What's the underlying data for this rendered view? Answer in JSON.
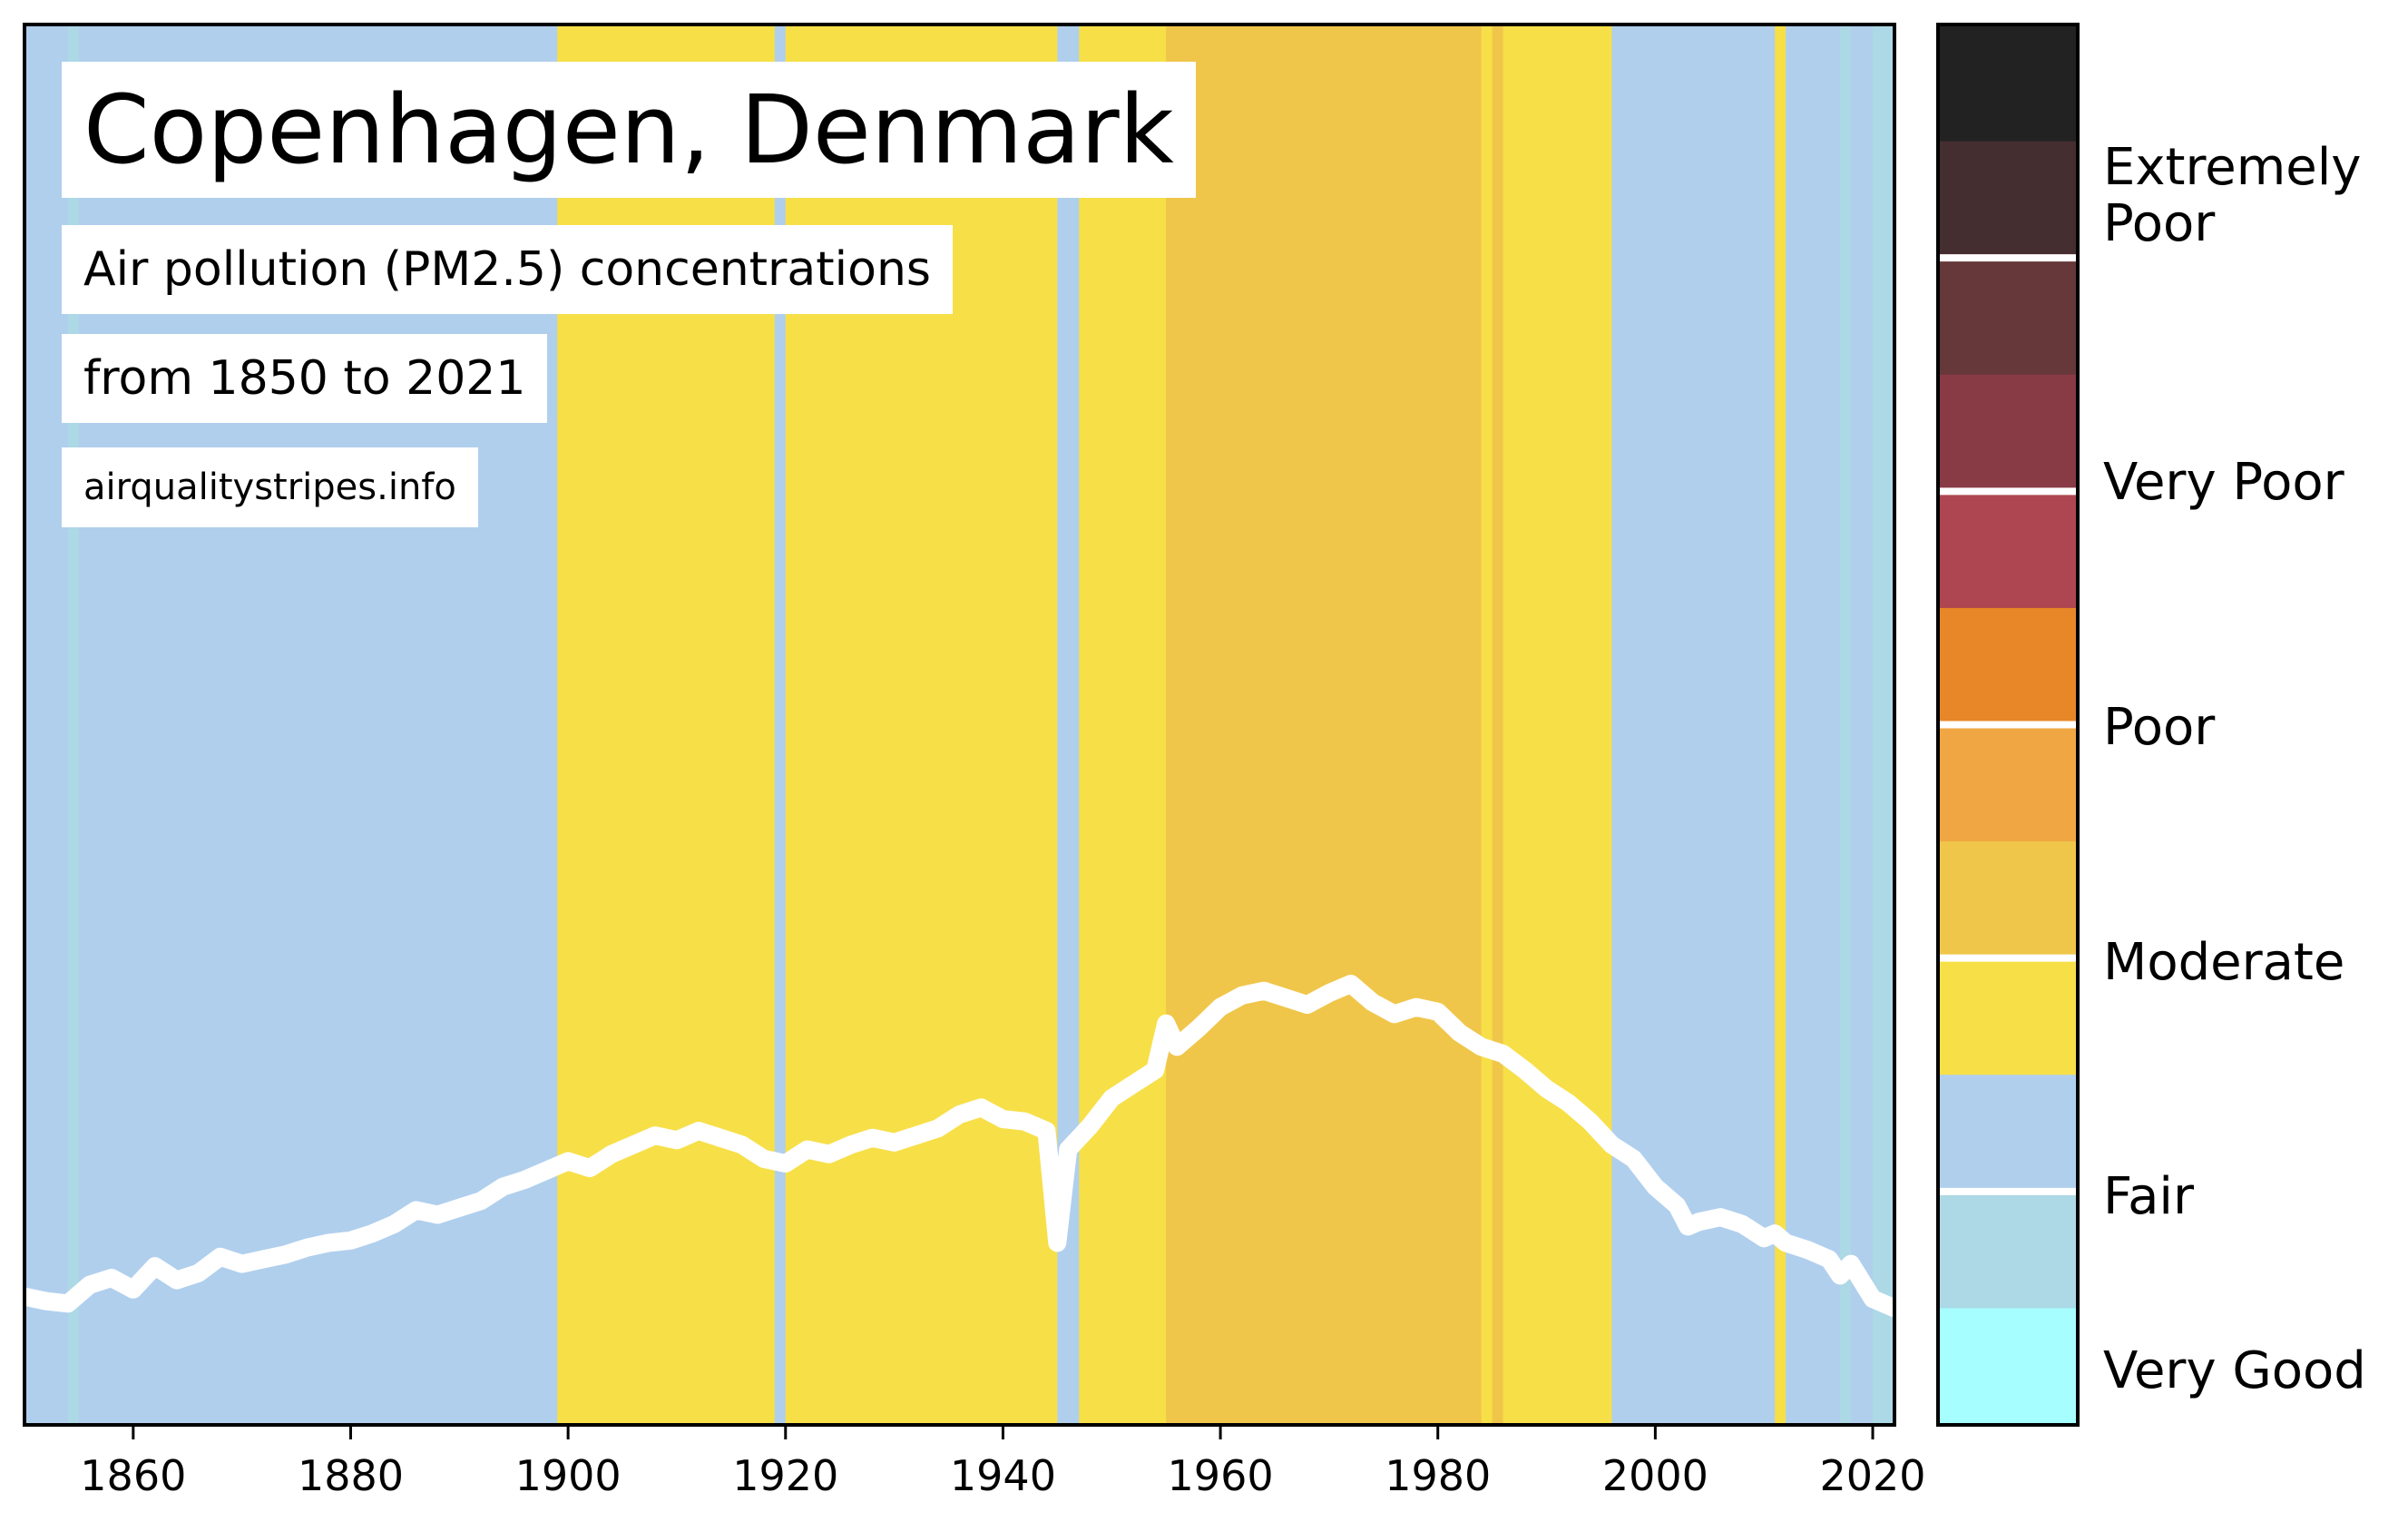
{
  "header": {
    "title": "Copenhagen, Denmark",
    "subtitle_line1": "Air pollution (PM2.5) concentrations",
    "subtitle_line2": "from 1850 to 2021",
    "source": "airqualitystripes.info"
  },
  "chart_data": {
    "type": "area",
    "description_kind": "air quality stripes with PM2.5 line",
    "xlim": [
      1850,
      2022
    ],
    "ylim": [
      0,
      60
    ],
    "x_ticks": [
      "1860",
      "1880",
      "1900",
      "1920",
      "1940",
      "1960",
      "1980",
      "2000",
      "2020"
    ],
    "category_colors": {
      "Fair_light": "#b0cfed",
      "Fair_teal": "#add8e6",
      "Moderate_yellow": "#f7df48",
      "Moderate_amber": "#f0c64a"
    },
    "stripes": [
      {
        "from": 1850,
        "to": 1854,
        "color": "#b0cfed"
      },
      {
        "from": 1854,
        "to": 1855,
        "color": "#add8e6"
      },
      {
        "from": 1855,
        "to": 1899,
        "color": "#b0cfed"
      },
      {
        "from": 1899,
        "to": 1919,
        "color": "#f7df48"
      },
      {
        "from": 1919,
        "to": 1920,
        "color": "#b0cfed"
      },
      {
        "from": 1920,
        "to": 1945,
        "color": "#f7df48"
      },
      {
        "from": 1945,
        "to": 1947,
        "color": "#b0cfed"
      },
      {
        "from": 1947,
        "to": 1955,
        "color": "#f7df48"
      },
      {
        "from": 1955,
        "to": 1984,
        "color": "#f0c64a"
      },
      {
        "from": 1984,
        "to": 1985,
        "color": "#f7df48"
      },
      {
        "from": 1985,
        "to": 1986,
        "color": "#f0c64a"
      },
      {
        "from": 1986,
        "to": 1987,
        "color": "#f7df48"
      },
      {
        "from": 1987,
        "to": 1996,
        "color": "#f7df48"
      },
      {
        "from": 1996,
        "to": 2011,
        "color": "#b0cfed"
      },
      {
        "from": 2011,
        "to": 2012,
        "color": "#f7df48"
      },
      {
        "from": 2012,
        "to": 2017,
        "color": "#b0cfed"
      },
      {
        "from": 2017,
        "to": 2018,
        "color": "#add8e6"
      },
      {
        "from": 2018,
        "to": 2020,
        "color": "#b0cfed"
      },
      {
        "from": 2020,
        "to": 2022,
        "color": "#add8e6"
      }
    ],
    "series": [
      {
        "color": "#ffffff",
        "x": [
          1850,
          1852,
          1854,
          1856,
          1858,
          1860,
          1862,
          1864,
          1866,
          1868,
          1870,
          1872,
          1874,
          1876,
          1878,
          1880,
          1882,
          1884,
          1886,
          1888,
          1890,
          1892,
          1894,
          1896,
          1898,
          1900,
          1902,
          1904,
          1906,
          1908,
          1910,
          1912,
          1914,
          1916,
          1918,
          1920,
          1922,
          1924,
          1926,
          1928,
          1930,
          1932,
          1934,
          1936,
          1938,
          1940,
          1942,
          1944,
          1945,
          1946,
          1948,
          1950,
          1952,
          1954,
          1955,
          1956,
          1958,
          1960,
          1962,
          1964,
          1966,
          1968,
          1970,
          1972,
          1974,
          1976,
          1978,
          1980,
          1982,
          1984,
          1986,
          1988,
          1990,
          1992,
          1994,
          1996,
          1998,
          2000,
          2002,
          2003,
          2004,
          2006,
          2008,
          2010,
          2011,
          2012,
          2014,
          2016,
          2017,
          2018,
          2020,
          2022
        ],
        "values": [
          5.5,
          5.3,
          5.2,
          6.0,
          6.3,
          5.8,
          6.8,
          6.2,
          6.5,
          7.2,
          6.9,
          7.1,
          7.3,
          7.6,
          7.8,
          7.9,
          8.2,
          8.6,
          9.2,
          9.0,
          9.3,
          9.6,
          10.2,
          10.5,
          10.9,
          11.3,
          11.0,
          11.6,
          12.0,
          12.4,
          12.2,
          12.6,
          12.3,
          12.0,
          11.4,
          11.2,
          11.8,
          11.6,
          12.0,
          12.3,
          12.1,
          12.4,
          12.7,
          13.3,
          13.6,
          13.1,
          13.0,
          12.6,
          7.8,
          11.8,
          12.8,
          14.0,
          14.6,
          15.2,
          17.2,
          16.2,
          17.0,
          17.9,
          18.4,
          18.6,
          18.3,
          18.0,
          18.5,
          18.9,
          18.1,
          17.6,
          17.9,
          17.7,
          16.8,
          16.2,
          15.9,
          15.2,
          14.4,
          13.8,
          13.0,
          12.0,
          11.4,
          10.2,
          9.4,
          8.5,
          8.7,
          8.9,
          8.6,
          8.0,
          8.2,
          7.8,
          7.5,
          7.1,
          6.4,
          6.9,
          5.4,
          5.0
        ]
      }
    ]
  },
  "colorbar": {
    "segments": [
      {
        "color": "#222222"
      },
      {
        "color": "#452e30"
      },
      {
        "color": "#66383a"
      },
      {
        "color": "#883a45"
      },
      {
        "color": "#ad4650"
      },
      {
        "color": "#e88727"
      },
      {
        "color": "#f0a642"
      },
      {
        "color": "#f0c64a"
      },
      {
        "color": "#f7df48"
      },
      {
        "color": "#b0cfed"
      },
      {
        "color": "#add8e6"
      },
      {
        "color": "#a6fffe"
      }
    ],
    "dividers_after_segment": [
      2,
      4,
      6,
      8,
      10
    ],
    "labels": {
      "extremely_poor_line1": "Extremely",
      "extremely_poor_line2": "Poor",
      "very_poor": "Very Poor",
      "poor": "Poor",
      "moderate": "Moderate",
      "fair": "Fair",
      "very_good": "Very Good"
    }
  }
}
